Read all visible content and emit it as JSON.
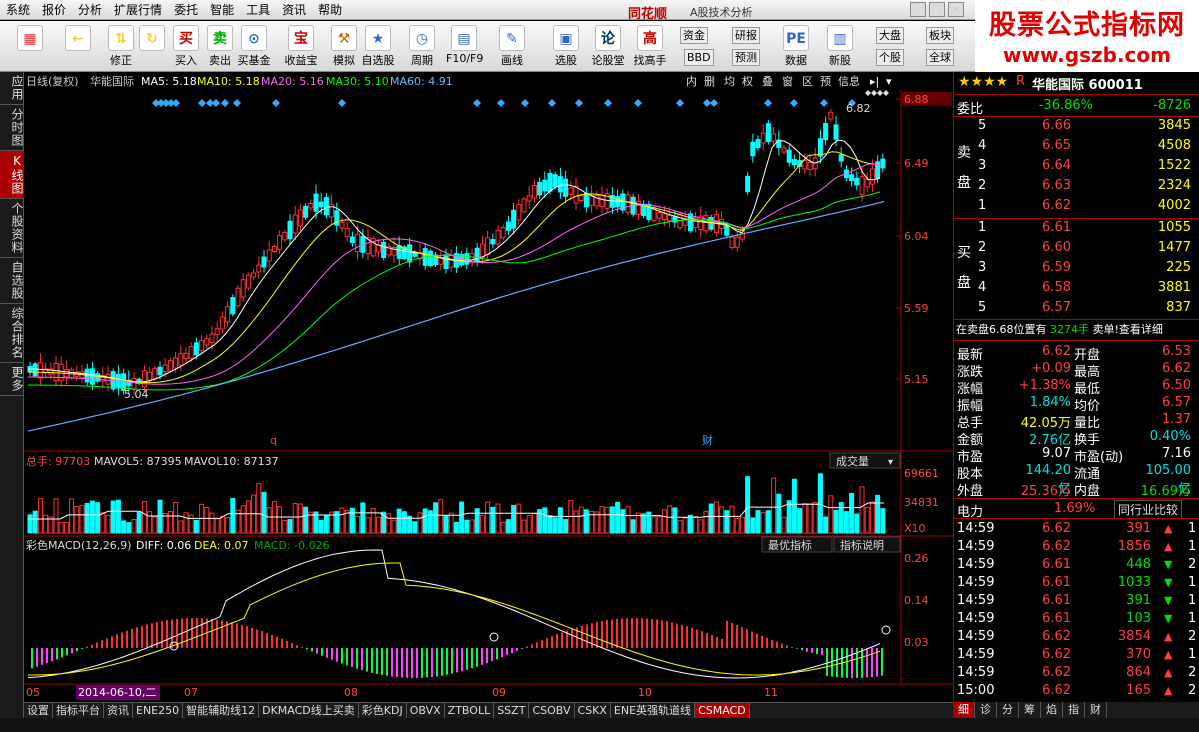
{
  "menu": [
    "系统",
    "报价",
    "分析",
    "扩展行情",
    "委托",
    "智能",
    "工具",
    "资讯",
    "帮助"
  ],
  "app": {
    "brand": "同花顺",
    "subtitle": "A股技术分析"
  },
  "logo": {
    "line1": "股票公式指标网",
    "line2": "www.gszb.com"
  },
  "toolbar": {
    "buttons": [
      {
        "label": "",
        "icon": "grid-icon"
      },
      {
        "label": "",
        "icon": "back-arrow-icon"
      },
      {
        "label": "修正",
        "icon": "updown-icon"
      },
      {
        "label": "",
        "icon": "refresh-icon"
      },
      {
        "label": "买入",
        "icon": "buy-icon"
      },
      {
        "label": "卖出",
        "icon": "sell-icon"
      },
      {
        "label": "买基金",
        "icon": "fund-icon"
      },
      {
        "label": "收益宝",
        "icon": "bao-icon"
      },
      {
        "label": "模拟",
        "icon": "hammer-icon"
      },
      {
        "label": "自选股",
        "icon": "star-icon"
      },
      {
        "label": "周期",
        "icon": "clock-icon"
      },
      {
        "label": "F10/F9",
        "icon": "f10-icon"
      },
      {
        "label": "画线",
        "icon": "pen-icon"
      },
      {
        "label": "选股",
        "icon": "select-icon"
      },
      {
        "label": "论股堂",
        "icon": "lun-icon"
      },
      {
        "label": "找高手",
        "icon": "gao-icon"
      },
      {
        "label": "数据",
        "icon": "pe-icon"
      },
      {
        "label": "新股",
        "icon": "newstock-icon"
      }
    ],
    "small": [
      "资金",
      "研报",
      "大盘",
      "板块",
      "BBD",
      "预测",
      "个股",
      "全球"
    ]
  },
  "left_tabs": [
    "应用",
    "分时图",
    "K线图",
    "个股资料",
    "自选股",
    "综合排名",
    "更多"
  ],
  "header": {
    "period": "日线(复权)",
    "name": "华能国际",
    "ma5": "MA5: 5.18",
    "ma10": "MA10: 5.18",
    "ma20": "MA20: 5.16",
    "ma30": "MA30: 5.10",
    "ma60": "MA60: 4.91",
    "tabs": [
      "内",
      "删",
      "均",
      "权",
      "叠",
      "窗",
      "区",
      "预",
      "信息"
    ]
  },
  "axis": {
    "price_ticks": [
      "6.88",
      "6.49",
      "6.04",
      "5.59",
      "5.15"
    ],
    "high_label": "6.82",
    "low_label": "5.04",
    "markers": [
      "q",
      "财"
    ],
    "volume_ticks": [
      "69661",
      "34831",
      "X10"
    ],
    "macd_ticks": [
      "0.26",
      "0.14",
      "0.03"
    ],
    "dates": [
      "05",
      "2014-06-10,二",
      "07",
      "08",
      "09",
      "10",
      "11"
    ]
  },
  "volume": {
    "label": "总手: 97703",
    "mavol5": "MAVOL5: 87395",
    "mavol10": "MAVOL10: 87137",
    "dropdown": "成交量"
  },
  "macd": {
    "label": "彩色MACD(12,26,9)",
    "diff": "DIFF: 0.06",
    "dea": "DEA: 0.07",
    "macd": "MACD: -0.026",
    "btn1": "最优指标",
    "btn2": "指标说明"
  },
  "bottom_tabs": [
    "设置",
    "指标平台",
    "资讯",
    "ENE250",
    "智能辅助线12",
    "DKMACD线上买卖",
    "彩色KDJ",
    "OBVX",
    "ZTBOLL",
    "SSZT",
    "CSOBV",
    "CSKX",
    "ENE英强轨道线",
    "CSMACD"
  ],
  "stock": {
    "title": "华能国际 600011",
    "weibi_label": "委比",
    "weibi": "-36.86%",
    "weicha": "-8726",
    "sell": [
      [
        "5",
        "6.66",
        "3845"
      ],
      [
        "4",
        "6.65",
        "4508"
      ],
      [
        "3",
        "6.64",
        "1522"
      ],
      [
        "2",
        "6.63",
        "2324"
      ],
      [
        "1",
        "6.62",
        "4002"
      ]
    ],
    "buy": [
      [
        "1",
        "6.61",
        "1055"
      ],
      [
        "2",
        "6.60",
        "1477"
      ],
      [
        "3",
        "6.59",
        "225"
      ],
      [
        "4",
        "6.58",
        "3881"
      ],
      [
        "5",
        "6.57",
        "837"
      ]
    ],
    "sell_label": "卖盘",
    "buy_label": "买盘",
    "notice": "在卖盘6.68位置有",
    "notice_qty": "3274手",
    "notice_tail": "卖单!查看详细",
    "stats": [
      [
        "最新",
        "6.62",
        "开盘",
        "6.53"
      ],
      [
        "涨跌",
        "+0.09",
        "最高",
        "6.62"
      ],
      [
        "涨幅",
        "+1.38%",
        "最低",
        "6.50"
      ],
      [
        "振幅",
        "1.84%",
        "均价",
        "6.57"
      ],
      [
        "总手",
        "42.05万",
        "量比",
        "1.37"
      ],
      [
        "金额",
        "2.76亿",
        "换手",
        "0.40%"
      ],
      [
        "市盈",
        "9.07",
        "市盈(动)",
        "7.16"
      ],
      [
        "股本",
        "144.20亿",
        "流通",
        "105.00亿"
      ],
      [
        "外盘",
        "25.36万",
        "内盘",
        "16.69万"
      ]
    ],
    "industry": "电力",
    "industry_pct": "1.69%",
    "industry_btn": "同行业比较",
    "ticks": [
      [
        "14:59",
        "6.62",
        "391",
        "1"
      ],
      [
        "14:59",
        "6.62",
        "1856",
        "1"
      ],
      [
        "14:59",
        "6.61",
        "448",
        "2"
      ],
      [
        "14:59",
        "6.61",
        "1033",
        "1"
      ],
      [
        "14:59",
        "6.61",
        "391",
        "1"
      ],
      [
        "14:59",
        "6.61",
        "103",
        "1"
      ],
      [
        "14:59",
        "6.62",
        "3854",
        "2"
      ],
      [
        "14:59",
        "6.62",
        "370",
        "1"
      ],
      [
        "14:59",
        "6.62",
        "864",
        "2"
      ],
      [
        "15:00",
        "6.62",
        "165",
        "2"
      ]
    ],
    "tabs": [
      "细",
      "诊",
      "分",
      "筹",
      "焰",
      "指",
      "财"
    ]
  },
  "colors": {
    "up": "#ff3030",
    "down": "#00ffff",
    "ma5": "#ffffff",
    "ma10": "#ffff00",
    "ma20": "#ff60ff",
    "ma30": "#00ff00",
    "ma60": "#60b0ff"
  }
}
